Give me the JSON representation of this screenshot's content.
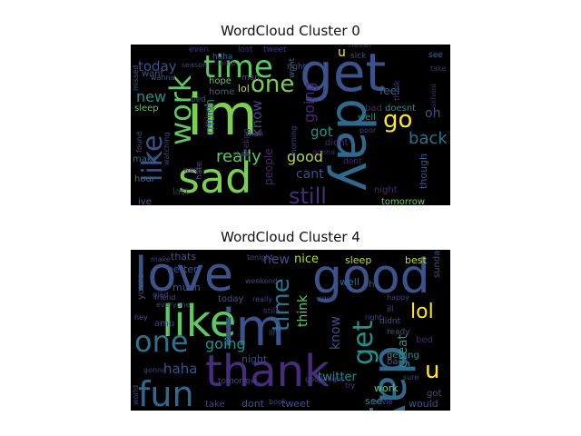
{
  "clouds": [
    {
      "title": "WordCloud Cluster 0",
      "words": [
        {
          "text": "im",
          "color": "#7ad151",
          "size": 62,
          "rot": 0
        },
        {
          "text": "get",
          "color": "#3b528b",
          "size": 58,
          "rot": 0
        },
        {
          "text": "day",
          "color": "#31688e",
          "size": 56,
          "rot": 90
        },
        {
          "text": "sad",
          "color": "#7ad151",
          "size": 46,
          "rot": 0
        },
        {
          "text": "time",
          "color": "#5ec962",
          "size": 34,
          "rot": 0
        },
        {
          "text": "work",
          "color": "#5ec962",
          "size": 32,
          "rot": 270
        },
        {
          "text": "like",
          "color": "#3b528b",
          "size": 30,
          "rot": 270
        },
        {
          "text": "one",
          "color": "#7ad151",
          "size": 26,
          "rot": 0
        },
        {
          "text": "go",
          "color": "#fde725",
          "size": 26,
          "rot": 0
        },
        {
          "text": "still",
          "color": "#472d7b",
          "size": 24,
          "rot": 0
        },
        {
          "text": "back",
          "color": "#2c728e",
          "size": 18,
          "rot": 0
        },
        {
          "text": "really",
          "color": "#5ec962",
          "size": 18,
          "rot": 0
        },
        {
          "text": "good",
          "color": "#b5de2b",
          "size": 16,
          "rot": 0
        },
        {
          "text": "going",
          "color": "#482878",
          "size": 16,
          "rot": 270
        },
        {
          "text": "new",
          "color": "#21918c",
          "size": 16,
          "rot": 0
        },
        {
          "text": "today",
          "color": "#3b528b",
          "size": 15,
          "rot": 0
        },
        {
          "text": "got",
          "color": "#21918c",
          "size": 15,
          "rot": 0
        },
        {
          "text": "know",
          "color": "#414487",
          "size": 15,
          "rot": 270
        },
        {
          "text": "much",
          "color": "#2c728e",
          "size": 14,
          "rot": 270
        },
        {
          "text": "cant",
          "color": "#3b528b",
          "size": 14,
          "rot": 0
        },
        {
          "text": "feel",
          "color": "#31688e",
          "size": 12,
          "rot": 0
        },
        {
          "text": "oh",
          "color": "#3b528b",
          "size": 14,
          "rot": 0
        },
        {
          "text": "people",
          "color": "#482878",
          "size": 12,
          "rot": 270
        },
        {
          "text": "u",
          "color": "#fde725",
          "size": 14,
          "rot": 0
        },
        {
          "text": "though",
          "color": "#3b528b",
          "size": 11,
          "rot": 270
        },
        {
          "text": "night",
          "color": "#482878",
          "size": 10,
          "rot": 0
        },
        {
          "text": "tomorrow",
          "color": "#6ece58",
          "size": 10,
          "rot": 0
        },
        {
          "text": "lol",
          "color": "#b5de2b",
          "size": 11,
          "rot": 0
        },
        {
          "text": "sleep",
          "color": "#5ec962",
          "size": 10,
          "rot": 0
        },
        {
          "text": "want",
          "color": "#3b528b",
          "size": 10,
          "rot": 0
        },
        {
          "text": "home",
          "color": "#31688e",
          "size": 10,
          "rot": 0
        },
        {
          "text": "hope",
          "color": "#5ec962",
          "size": 10,
          "rot": 0
        },
        {
          "text": "make",
          "color": "#31688e",
          "size": 10,
          "rot": 0
        },
        {
          "text": "hour",
          "color": "#2c728e",
          "size": 10,
          "rot": 0
        },
        {
          "text": "last",
          "color": "#482878",
          "size": 10,
          "rot": 0
        },
        {
          "text": "ive",
          "color": "#31688e",
          "size": 10,
          "rot": 0
        },
        {
          "text": "bad",
          "color": "#482878",
          "size": 10,
          "rot": 0
        },
        {
          "text": "well",
          "color": "#21918c",
          "size": 10,
          "rot": 0
        },
        {
          "text": "didnt",
          "color": "#482878",
          "size": 10,
          "rot": 0
        },
        {
          "text": "doesnt",
          "color": "#21918c",
          "size": 10,
          "rot": 0
        },
        {
          "text": "wont",
          "color": "#31688e",
          "size": 9,
          "rot": 270
        },
        {
          "text": "think",
          "color": "#482878",
          "size": 9,
          "rot": 270
        },
        {
          "text": "sick",
          "color": "#3b528b",
          "size": 9,
          "rot": 0
        },
        {
          "text": "never",
          "color": "#482878",
          "size": 9,
          "rot": 0
        },
        {
          "text": "see",
          "color": "#31688e",
          "size": 9,
          "rot": 0
        },
        {
          "text": "school",
          "color": "#482878",
          "size": 8,
          "rot": 270
        },
        {
          "text": "feeling",
          "color": "#472d7b",
          "size": 9,
          "rot": 270
        },
        {
          "text": "hate",
          "color": "#3b528b",
          "size": 9,
          "rot": 270
        },
        {
          "text": "thing",
          "color": "#482878",
          "size": 9,
          "rot": 270
        },
        {
          "text": "wish",
          "color": "#414487",
          "size": 9,
          "rot": 0
        },
        {
          "text": "morning",
          "color": "#414487",
          "size": 8,
          "rot": 270
        },
        {
          "text": "watching",
          "color": "#414487",
          "size": 8,
          "rot": 270
        },
        {
          "text": "found",
          "color": "#3b528b",
          "size": 8,
          "rot": 270
        },
        {
          "text": "missed",
          "color": "#3b528b",
          "size": 8,
          "rot": 270
        },
        {
          "text": "season",
          "color": "#414487",
          "size": 8,
          "rot": 0
        },
        {
          "text": "haha",
          "color": "#31688e",
          "size": 9,
          "rot": 0
        },
        {
          "text": "tweet",
          "color": "#472d7b",
          "size": 9,
          "rot": 0
        },
        {
          "text": "lost",
          "color": "#482878",
          "size": 9,
          "rot": 0
        },
        {
          "text": "even",
          "color": "#482878",
          "size": 9,
          "rot": 0
        },
        {
          "text": "man",
          "color": "#414487",
          "size": 9,
          "rot": 0
        },
        {
          "text": "bed",
          "color": "#3b528b",
          "size": 9,
          "rot": 0
        },
        {
          "text": "right",
          "color": "#3b528b",
          "size": 9,
          "rot": 0
        },
        {
          "text": "take",
          "color": "#472d7b",
          "size": 8,
          "rot": 0
        },
        {
          "text": "dont",
          "color": "#482878",
          "size": 9,
          "rot": 0
        },
        {
          "text": "amp",
          "color": "#482878",
          "size": 8,
          "rot": 0
        },
        {
          "text": "wanna",
          "color": "#3b528b",
          "size": 8,
          "rot": 0
        },
        {
          "text": "poor",
          "color": "#414487",
          "size": 8,
          "rot": 0
        },
        {
          "text": "gonna",
          "color": "#482878",
          "size": 8,
          "rot": 0
        },
        {
          "text": "show",
          "color": "#414487",
          "size": 8,
          "rot": 0
        },
        {
          "text": "week",
          "color": "#482878",
          "size": 8,
          "rot": 0
        }
      ]
    },
    {
      "title": "WordCloud Cluster 4",
      "words": [
        {
          "text": "love",
          "color": "#3b528b",
          "size": 52,
          "rot": 0
        },
        {
          "text": "good",
          "color": "#3b528b",
          "size": 52,
          "rot": 0
        },
        {
          "text": "like",
          "color": "#5ec962",
          "size": 48,
          "rot": 0
        },
        {
          "text": "im",
          "color": "#3b528b",
          "size": 56,
          "rot": 0
        },
        {
          "text": "day",
          "color": "#31688e",
          "size": 52,
          "rot": 90
        },
        {
          "text": "thank",
          "color": "#472d7b",
          "size": 48,
          "rot": 0
        },
        {
          "text": "fun",
          "color": "#31688e",
          "size": 38,
          "rot": 0
        },
        {
          "text": "one",
          "color": "#2c728e",
          "size": 32,
          "rot": 0
        },
        {
          "text": "get",
          "color": "#21918c",
          "size": 30,
          "rot": 270
        },
        {
          "text": "time",
          "color": "#2c728e",
          "size": 26,
          "rot": 270
        },
        {
          "text": "lol",
          "color": "#fde725",
          "size": 22,
          "rot": 0
        },
        {
          "text": "u",
          "color": "#fde725",
          "size": 26,
          "rot": 0
        },
        {
          "text": "going",
          "color": "#21918c",
          "size": 16,
          "rot": 0
        },
        {
          "text": "haha",
          "color": "#3b528b",
          "size": 15,
          "rot": 0
        },
        {
          "text": "new",
          "color": "#3b528b",
          "size": 14,
          "rot": 0
        },
        {
          "text": "nice",
          "color": "#b5de2b",
          "size": 13,
          "rot": 0
        },
        {
          "text": "know",
          "color": "#3b528b",
          "size": 14,
          "rot": 270
        },
        {
          "text": "think",
          "color": "#5ec962",
          "size": 14,
          "rot": 270
        },
        {
          "text": "great",
          "color": "#21918c",
          "size": 14,
          "rot": 270
        },
        {
          "text": "twitter",
          "color": "#21918c",
          "size": 13,
          "rot": 0
        },
        {
          "text": "work",
          "color": "#5ec962",
          "size": 11,
          "rot": 0
        },
        {
          "text": "better",
          "color": "#3b528b",
          "size": 11,
          "rot": 0
        },
        {
          "text": "thats",
          "color": "#3b528b",
          "size": 11,
          "rot": 0
        },
        {
          "text": "sleep",
          "color": "#b5de2b",
          "size": 11,
          "rot": 0
        },
        {
          "text": "best",
          "color": "#b5de2b",
          "size": 11,
          "rot": 0
        },
        {
          "text": "well",
          "color": "#31688e",
          "size": 11,
          "rot": 0
        },
        {
          "text": "today",
          "color": "#3b528b",
          "size": 10,
          "rot": 0
        },
        {
          "text": "night",
          "color": "#414487",
          "size": 11,
          "rot": 0
        },
        {
          "text": "much",
          "color": "#3b528b",
          "size": 11,
          "rot": 0
        },
        {
          "text": "amp",
          "color": "#414487",
          "size": 10,
          "rot": 0
        },
        {
          "text": "see",
          "color": "#21918c",
          "size": 11,
          "rot": 0
        },
        {
          "text": "would",
          "color": "#3b528b",
          "size": 11,
          "rot": 0
        },
        {
          "text": "tweet",
          "color": "#3b528b",
          "size": 11,
          "rot": 0
        },
        {
          "text": "dont",
          "color": "#3b528b",
          "size": 11,
          "rot": 0
        },
        {
          "text": "take",
          "color": "#414487",
          "size": 10,
          "rot": 0
        },
        {
          "text": "got",
          "color": "#3b528b",
          "size": 10,
          "rot": 0
        },
        {
          "text": "oh",
          "color": "#3b528b",
          "size": 10,
          "rot": 0
        },
        {
          "text": "bed",
          "color": "#482878",
          "size": 10,
          "rot": 0
        },
        {
          "text": "getting",
          "color": "#21918c",
          "size": 10,
          "rot": 0
        },
        {
          "text": "back",
          "color": "#3b528b",
          "size": 10,
          "rot": 0
        },
        {
          "text": "sunday",
          "color": "#3b528b",
          "size": 10,
          "rot": 270
        },
        {
          "text": "youre",
          "color": "#3b528b",
          "size": 10,
          "rot": 270
        },
        {
          "text": "tomorrow",
          "color": "#414487",
          "size": 9,
          "rot": 0
        },
        {
          "text": "ill",
          "color": "#3b528b",
          "size": 9,
          "rot": 0
        },
        {
          "text": "didnt",
          "color": "#3b528b",
          "size": 9,
          "rot": 0
        },
        {
          "text": "ready",
          "color": "#3b528b",
          "size": 9,
          "rot": 0
        },
        {
          "text": "still",
          "color": "#482878",
          "size": 9,
          "rot": 0
        },
        {
          "text": "hey",
          "color": "#3b528b",
          "size": 8,
          "rot": 0
        },
        {
          "text": "life",
          "color": "#414487",
          "size": 8,
          "rot": 0
        },
        {
          "text": "glad",
          "color": "#414487",
          "size": 8,
          "rot": 0
        },
        {
          "text": "friend",
          "color": "#414487",
          "size": 8,
          "rot": 0
        },
        {
          "text": "everyone",
          "color": "#414487",
          "size": 8,
          "rot": 0
        },
        {
          "text": "weekend",
          "color": "#414487",
          "size": 8,
          "rot": 0
        },
        {
          "text": "tonight",
          "color": "#414487",
          "size": 8,
          "rot": 0
        },
        {
          "text": "week",
          "color": "#414487",
          "size": 8,
          "rot": 0
        },
        {
          "text": "really",
          "color": "#414487",
          "size": 8,
          "rot": 0
        },
        {
          "text": "right",
          "color": "#414487",
          "size": 8,
          "rot": 0
        },
        {
          "text": "movie",
          "color": "#414487",
          "size": 8,
          "rot": 0
        },
        {
          "text": "ur",
          "color": "#414487",
          "size": 8,
          "rot": 0
        },
        {
          "text": "world",
          "color": "#414487",
          "size": 8,
          "rot": 270
        },
        {
          "text": "gonna",
          "color": "#414487",
          "size": 8,
          "rot": 0
        },
        {
          "text": "happy",
          "color": "#414487",
          "size": 8,
          "rot": 0
        },
        {
          "text": "make",
          "color": "#414487",
          "size": 8,
          "rot": 0
        },
        {
          "text": "book",
          "color": "#414487",
          "size": 8,
          "rot": 0
        },
        {
          "text": "good night",
          "color": "#414487",
          "size": 8,
          "rot": 0
        },
        {
          "text": "sure",
          "color": "#414487",
          "size": 8,
          "rot": 0
        },
        {
          "text": "try",
          "color": "#414487",
          "size": 8,
          "rot": 0
        }
      ]
    }
  ]
}
